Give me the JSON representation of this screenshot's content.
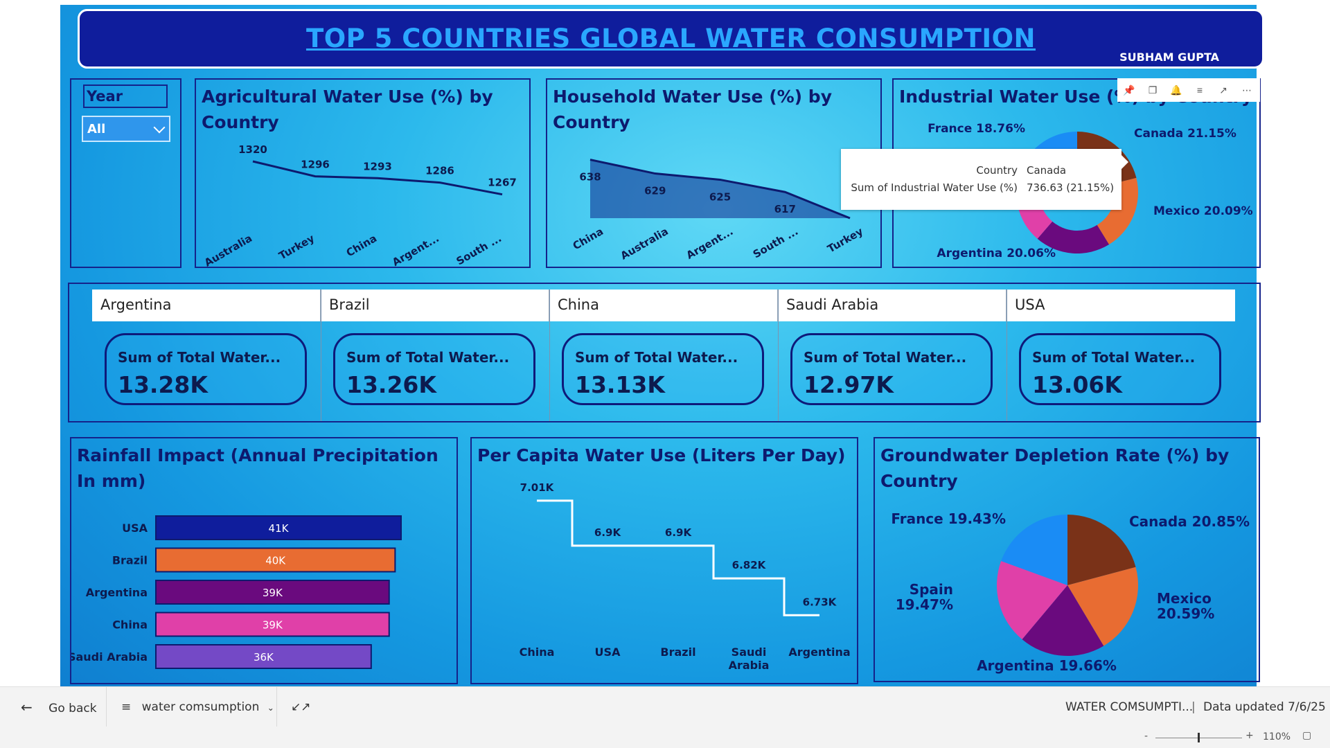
{
  "header": {
    "title": "TOP 5 COUNTRIES GLOBAL WATER CONSUMPTION",
    "author": "SUBHAM GUPTA"
  },
  "slicer": {
    "label": "Year",
    "value": "All"
  },
  "toolbar": {
    "icons": [
      "pin-icon",
      "copy-icon",
      "bell-icon",
      "filter-icon",
      "focus-mode-icon",
      "more-options-icon"
    ]
  },
  "charts": {
    "agricultural": {
      "title": "Agricultural Water Use (%) by Country"
    },
    "household": {
      "title": "Household Water Use (%) by Country"
    },
    "industrial": {
      "title": "Industrial Water Use (%) by Country"
    },
    "rainfall": {
      "title": "Rainfall Impact (Annual Precipitation In mm)"
    },
    "per_capita": {
      "title": "Per Capita Water Use (Liters Per Day)"
    },
    "groundwater": {
      "title": "Groundwater Depletion Rate (%) by Country"
    }
  },
  "tooltip": {
    "rows": [
      {
        "key": "Country",
        "value": "Canada"
      },
      {
        "key": "Sum of Industrial Water Use (%)",
        "value": "736.63 (21.15%)"
      }
    ]
  },
  "kpis": [
    {
      "country": "Argentina",
      "label": "Sum of Total Water...",
      "value": "13.28K"
    },
    {
      "country": "Brazil",
      "label": "Sum of Total Water...",
      "value": "13.26K"
    },
    {
      "country": "China",
      "label": "Sum of Total Water...",
      "value": "13.13K"
    },
    {
      "country": "Saudi Arabia",
      "label": "Sum of Total Water...",
      "value": "12.97K"
    },
    {
      "country": "USA",
      "label": "Sum of Total Water...",
      "value": "13.06K"
    }
  ],
  "bottom_bar": {
    "back": "Go back",
    "page": "water comsumption",
    "report": "WATER COMSUMPTI...",
    "updated": "Data updated 7/6/25"
  },
  "status": {
    "zoom": "110%"
  },
  "colors": {
    "navy": "#0f1d9c",
    "orange": "#e86c32",
    "purple": "#6a0a7e",
    "pink": "#e040a8",
    "violet": "#7449c6",
    "brown": "#7a3218",
    "blue": "#1a8cf5"
  },
  "chart_data": [
    {
      "type": "line",
      "name": "agricultural",
      "title": "Agricultural Water Use (%) by Country",
      "categories": [
        "Australia",
        "Turkey",
        "China",
        "Argent...",
        "South ..."
      ],
      "values": [
        1320,
        1296,
        1293,
        1286,
        1267
      ],
      "labels": [
        "1320",
        "1296",
        "1293",
        "1286",
        "1267"
      ],
      "ylim": [
        1240,
        1340
      ]
    },
    {
      "type": "area",
      "name": "household",
      "title": "Household Water Use (%) by Country",
      "categories": [
        "China",
        "Australia",
        "Argent...",
        "South ...",
        "Turkey"
      ],
      "values": [
        638,
        629,
        625,
        617,
        600
      ],
      "labels": [
        "638",
        "629",
        "625",
        "617",
        ""
      ],
      "ylim": [
        600,
        645
      ]
    },
    {
      "type": "pie",
      "name": "industrial",
      "title": "Industrial Water Use (%) by Country",
      "slices": [
        {
          "label": "Canada 21.15%",
          "value": 21.15,
          "color": "#7a3218"
        },
        {
          "label": "Mexico 20.09%",
          "value": 20.09,
          "color": "#e86c32"
        },
        {
          "label": "Argentina 20.06%",
          "value": 20.06,
          "color": "#6a0a7e"
        },
        {
          "label": "",
          "value": 19.94,
          "color": "#e040a8"
        },
        {
          "label": "France 18.76%",
          "value": 18.76,
          "color": "#1a8cf5"
        }
      ]
    },
    {
      "type": "bar",
      "name": "rainfall",
      "title": "Rainfall Impact (Annual Precipitation In mm)",
      "orientation": "horizontal",
      "categories": [
        "USA",
        "Brazil",
        "Argentina",
        "China",
        "Saudi Arabia"
      ],
      "values": [
        41000,
        40000,
        39000,
        39000,
        36000
      ],
      "labels": [
        "41K",
        "40K",
        "39K",
        "39K",
        "36K"
      ],
      "colors": [
        "#0f1d9c",
        "#e86c32",
        "#6a0a7e",
        "#e040a8",
        "#7449c6"
      ],
      "xlim": [
        0,
        41000
      ]
    },
    {
      "type": "line",
      "name": "per_capita",
      "title": "Per Capita Water Use (Liters Per Day)",
      "style": "step",
      "categories": [
        "China",
        "USA",
        "Brazil",
        "Saudi Arabia",
        "Argentina"
      ],
      "category_lines": [
        [
          "China"
        ],
        [
          "USA"
        ],
        [
          "Brazil"
        ],
        [
          "Saudi",
          "Arabia"
        ],
        [
          "Argentina"
        ]
      ],
      "values": [
        7010,
        6900,
        6900,
        6820,
        6730
      ],
      "labels": [
        "7.01K",
        "6.9K",
        "6.9K",
        "6.82K",
        "6.73K"
      ],
      "ylim": [
        6700,
        7020
      ]
    },
    {
      "type": "pie",
      "name": "groundwater",
      "title": "Groundwater Depletion Rate (%) by Country",
      "slices": [
        {
          "label": "Canada 20.85%",
          "value": 20.85,
          "color": "#7a3218"
        },
        {
          "label": "Mexico 20.59%",
          "value": 20.59,
          "color": "#e86c32"
        },
        {
          "label": "Argentina 19.66%",
          "value": 19.66,
          "color": "#6a0a7e"
        },
        {
          "label": "Spain 19.47%",
          "value": 19.47,
          "color": "#e040a8"
        },
        {
          "label": "France 19.43%",
          "value": 19.43,
          "color": "#1a8cf5"
        }
      ]
    }
  ]
}
